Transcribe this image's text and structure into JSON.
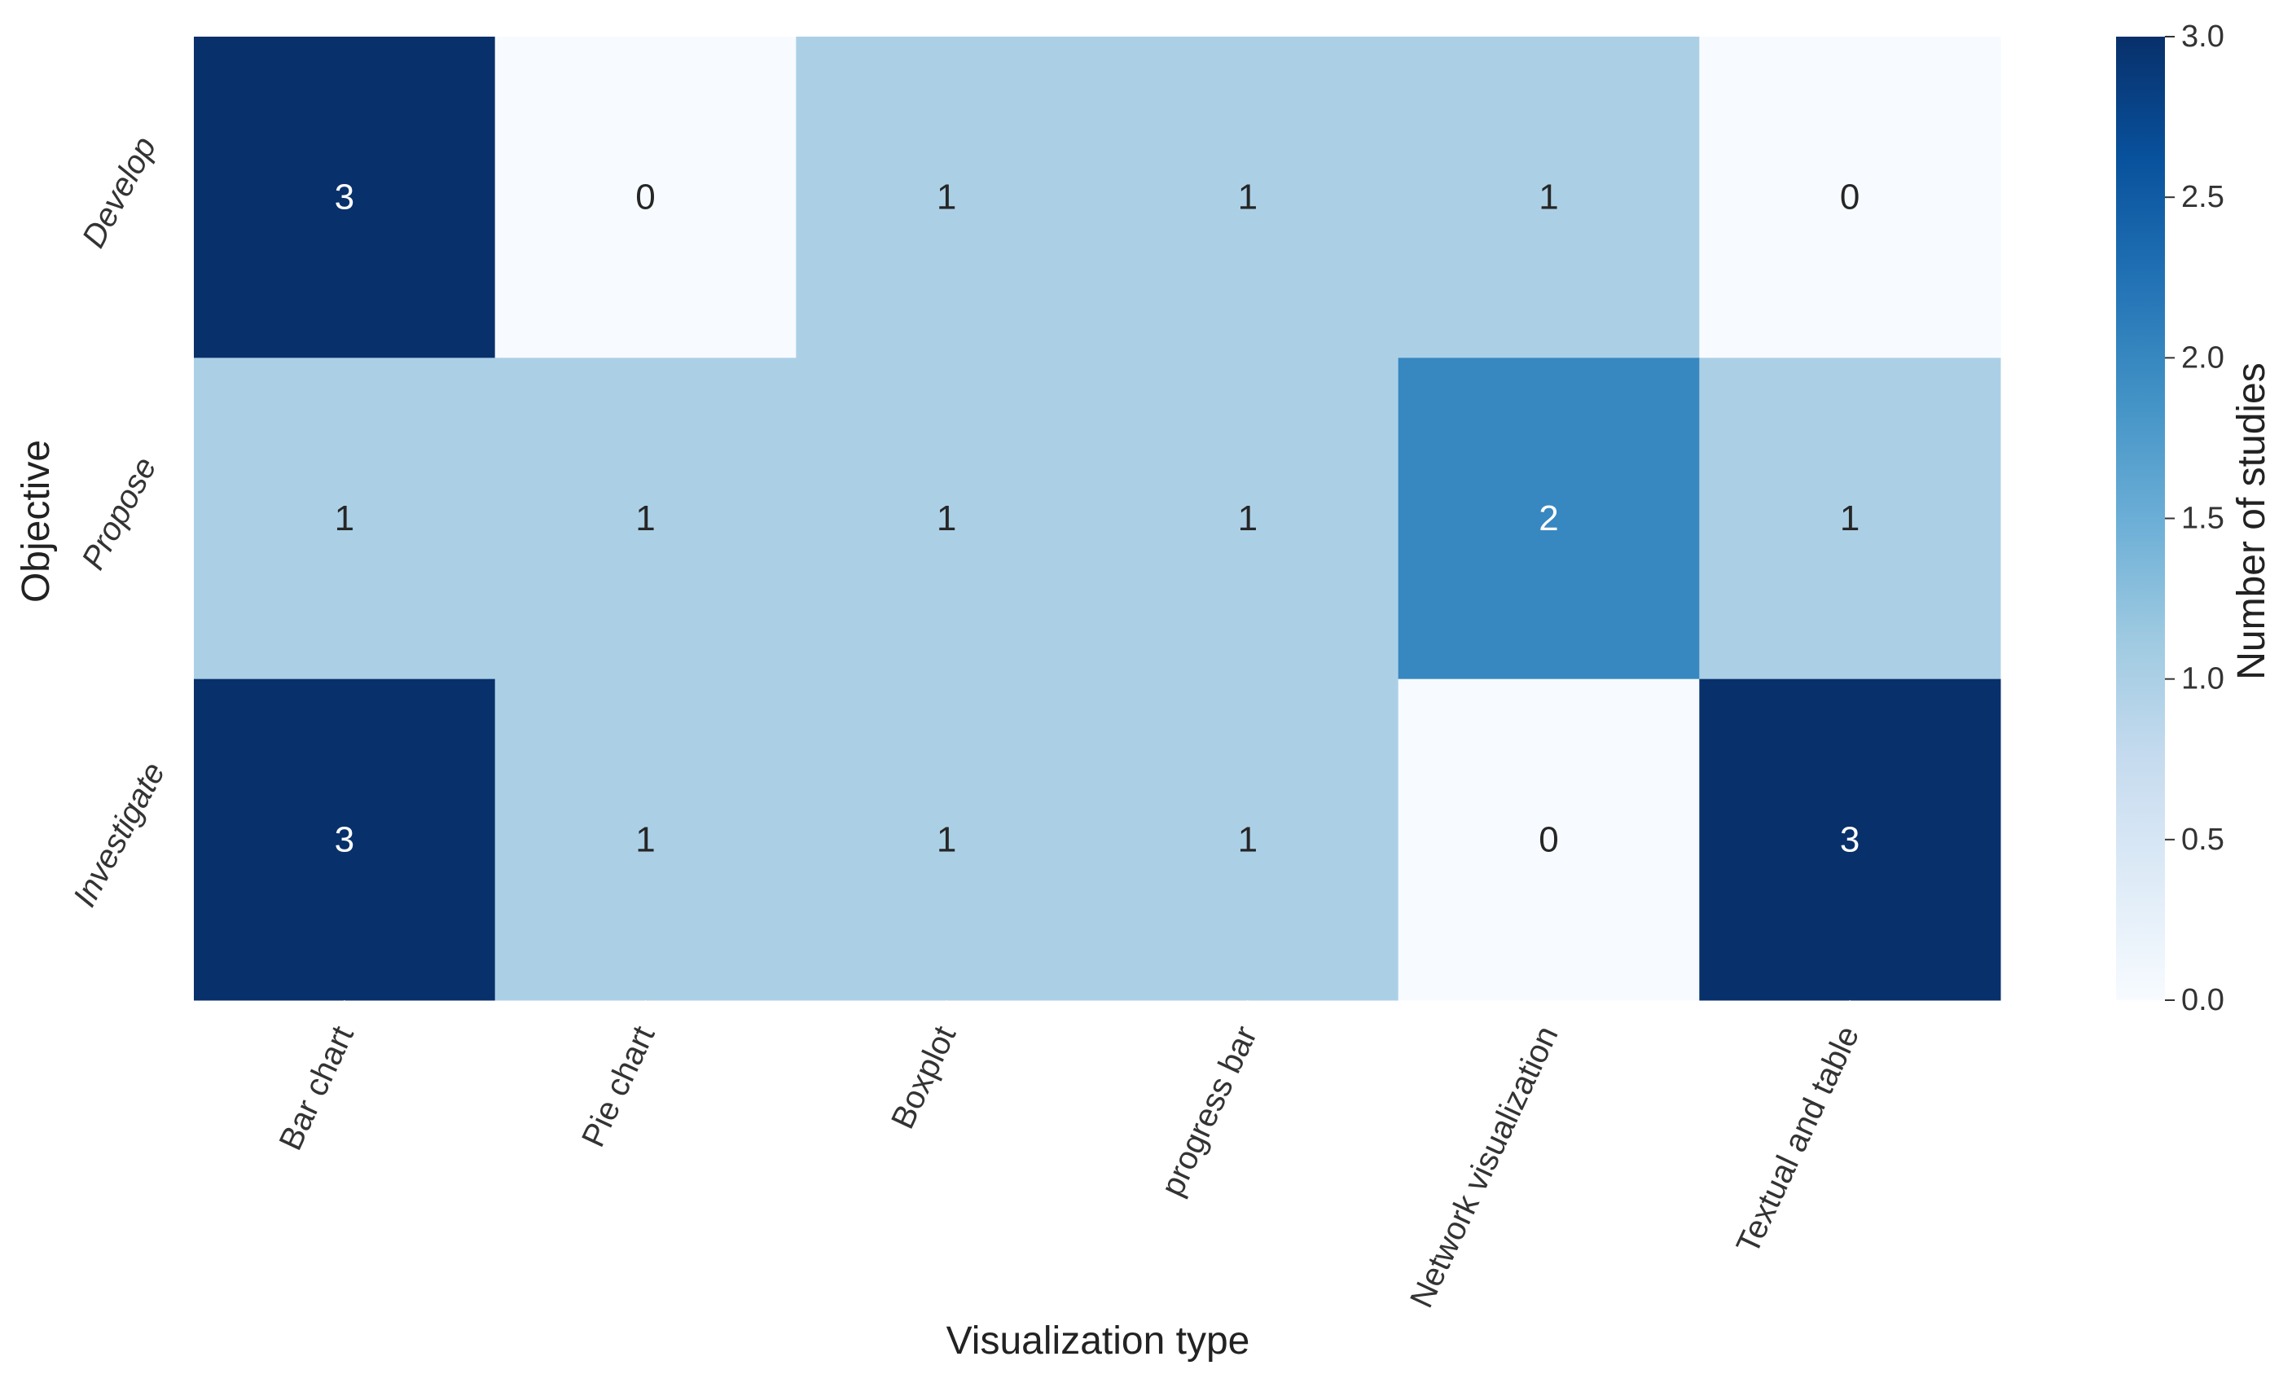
{
  "chart_data": {
    "type": "heatmap",
    "title": "",
    "xlabel": "Visualization type",
    "ylabel": "Objective",
    "x_categories": [
      "Bar chart",
      "Pie chart",
      "Boxplot",
      "progress bar",
      "Network visualization",
      "Textual and table"
    ],
    "y_categories": [
      "Develop",
      "Propose",
      "Investigate"
    ],
    "values": [
      [
        3,
        0,
        1,
        1,
        1,
        0
      ],
      [
        1,
        1,
        1,
        1,
        2,
        1
      ],
      [
        3,
        1,
        1,
        1,
        0,
        3
      ]
    ],
    "colorbar": {
      "label": "Number of studies",
      "min": 0.0,
      "max": 3.0,
      "ticks": [
        "0.0",
        "0.5",
        "1.0",
        "1.5",
        "2.0",
        "2.5",
        "3.0"
      ],
      "colormap": "Blues"
    },
    "annotations": true
  },
  "colors": {
    "cmap_stops": [
      "#f7fbff",
      "#deebf7",
      "#c6dbef",
      "#9ecae1",
      "#6baed6",
      "#4292c6",
      "#2171b5",
      "#08519c",
      "#08306b"
    ],
    "text_dark": "#262626",
    "text_light": "#ffffff"
  }
}
